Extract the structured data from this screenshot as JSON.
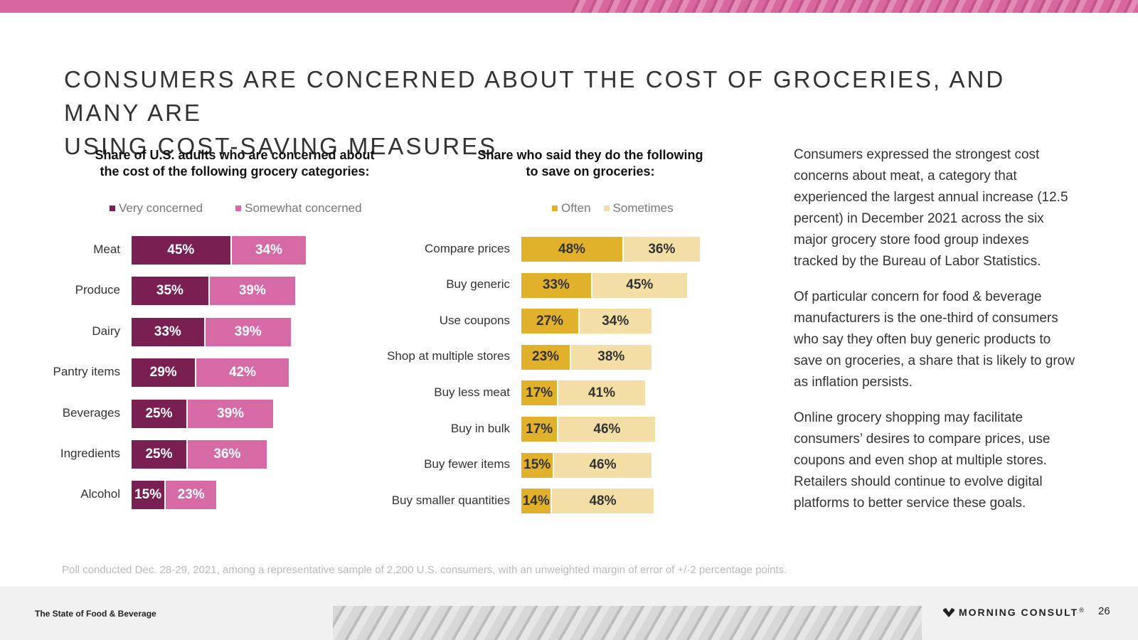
{
  "header": {
    "title_line1": "CONSUMERS ARE CONCERNED ABOUT THE COST OF GROCERIES, AND MANY ARE",
    "title_line2": "USING COST-SAVING MEASURES"
  },
  "colors": {
    "very_concerned": "#7a1f52",
    "somewhat_concerned": "#d66aa6",
    "often": "#e1b12c",
    "sometimes": "#f3dfa6",
    "accent_pink": "#d8679f"
  },
  "chart_data": [
    {
      "type": "bar",
      "orientation": "horizontal",
      "stacked": true,
      "title_line1": "Share of U.S. adults who are concerned about",
      "title_line2": "the cost of the following grocery categories:",
      "categories": [
        "Meat",
        "Produce",
        "Dairy",
        "Pantry items",
        "Beverages",
        "Ingredients",
        "Alcohol"
      ],
      "series": [
        {
          "name": "Very concerned",
          "values": [
            45,
            35,
            33,
            29,
            25,
            25,
            15
          ],
          "labels": [
            "45%",
            "35%",
            "33%",
            "29%",
            "25%",
            "25%",
            "15%"
          ]
        },
        {
          "name": "Somewhat concerned",
          "values": [
            34,
            39,
            39,
            42,
            39,
            36,
            23
          ],
          "labels": [
            "34%",
            "39%",
            "39%",
            "42%",
            "39%",
            "36%",
            "23%"
          ]
        }
      ],
      "unit": "%",
      "legend": "top"
    },
    {
      "type": "bar",
      "orientation": "horizontal",
      "stacked": true,
      "title_line1": "Share who said they do the following",
      "title_line2": "to save on groceries:",
      "categories": [
        "Compare prices",
        "Buy generic",
        "Use coupons",
        "Shop at multiple stores",
        "Buy less meat",
        "Buy in bulk",
        "Buy fewer items",
        "Buy smaller quantities"
      ],
      "series": [
        {
          "name": "Often",
          "values": [
            48,
            33,
            27,
            23,
            17,
            17,
            15,
            14
          ],
          "labels": [
            "48%",
            "33%",
            "27%",
            "23%",
            "17%",
            "17%",
            "15%",
            "14%"
          ]
        },
        {
          "name": "Sometimes",
          "values": [
            36,
            45,
            34,
            38,
            41,
            46,
            46,
            48
          ],
          "labels": [
            "36%",
            "45%",
            "34%",
            "38%",
            "41%",
            "46%",
            "46%",
            "48%"
          ]
        }
      ],
      "unit": "%",
      "legend": "top"
    }
  ],
  "commentary": {
    "p1": "Consumers expressed the strongest cost concerns about meat, a category that experienced the largest annual increase (12.5 percent) in December 2021 across the six major grocery store food group indexes tracked by the Bureau of Labor Statistics.",
    "p2": "Of particular concern for food & beverage manufacturers is the one-third of consumers who say they often buy generic products to save on groceries, a share that is likely to grow as inflation persists.",
    "p3": "Online grocery shopping may facilitate consumers’ desires to compare prices, use coupons and even shop at multiple stores. Retailers should continue to evolve digital platforms to better service these goals."
  },
  "footnote": "Poll conducted Dec. 28-29, 2021, among a representative sample of 2,200 U.S. consumers, with an unweighted margin of error of +/-2 percentage points.",
  "footer": {
    "report_name": "The State of Food & Beverage",
    "brand": "MORNING CONSULT",
    "trademark": "®",
    "page_number": "26"
  }
}
